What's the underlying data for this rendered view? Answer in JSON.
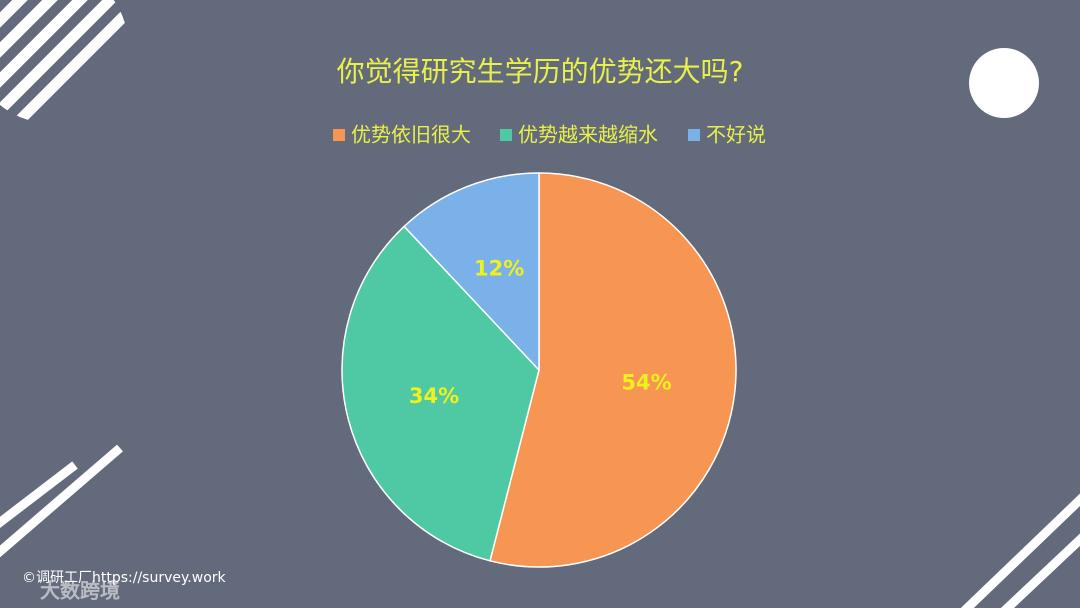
{
  "chart_data": {
    "type": "pie",
    "title": "你觉得研究生学历的优势还大吗?",
    "categories": [
      "优势依旧很大",
      "优势越来越缩水",
      "不好说"
    ],
    "values": [
      54,
      34,
      12
    ],
    "value_labels": [
      "54%",
      "34%",
      "12%"
    ],
    "colors": [
      "#f79552",
      "#4fc9a4",
      "#79b1e8"
    ]
  },
  "credit": "©调研工厂https://survey.work",
  "watermark": "大数跨境"
}
